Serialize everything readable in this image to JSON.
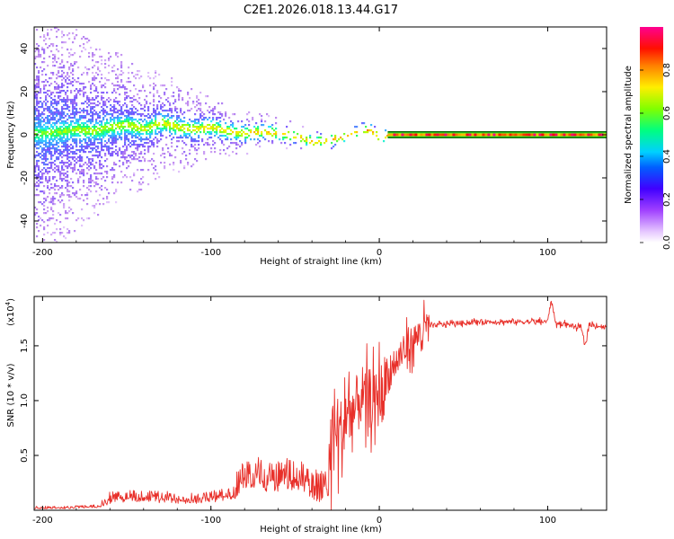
{
  "title": "C2E1.2026.018.13.44.G17",
  "colors": {
    "snr_line": "#e8302a",
    "spectrogram_line": "#e03030",
    "spectrogram_band": "#0a6a0a",
    "colormap": [
      "#ffffff",
      "#d8a8ff",
      "#8a2be2",
      "#3300ff",
      "#0080ff",
      "#00e5ff",
      "#00ff66",
      "#aaff00",
      "#ffee00",
      "#ff8800",
      "#ff0000",
      "#ff0088"
    ]
  },
  "chart_data": [
    {
      "type": "heatmap",
      "name": "spectrogram",
      "xlabel": "Height of straight line (km)",
      "ylabel": "Frequency (Hz)",
      "xlim": [
        -205,
        135
      ],
      "ylim": [
        -50,
        50
      ],
      "xticks": [
        -200,
        -100,
        0,
        100
      ],
      "xtick_labels": [
        "-200",
        "-100",
        "0",
        "100"
      ],
      "yticks": [
        -40,
        -20,
        0,
        20,
        40
      ],
      "ytick_labels": [
        "-40",
        "-20",
        "0",
        "20",
        "40"
      ],
      "colorbar": {
        "label": "Normalized spectral amplitude",
        "range": [
          0,
          1
        ],
        "ticks": [
          0.0,
          0.2,
          0.4,
          0.6,
          0.8
        ],
        "tick_labels": [
          "0.0",
          "0.2",
          "0.4",
          "0.6",
          "0.8"
        ]
      },
      "center_frequency_track": {
        "x": [
          -200,
          -190,
          -180,
          -170,
          -160,
          -150,
          -140,
          -130,
          -120,
          -110,
          -100,
          -90,
          -80,
          -70,
          -60,
          -50,
          -40,
          -30,
          -20,
          -15,
          -10,
          -5,
          0,
          5,
          10,
          50,
          100,
          130
        ],
        "y": [
          1,
          2,
          3,
          2,
          4,
          5,
          3,
          6,
          4,
          3,
          4,
          2,
          1,
          2,
          1,
          0,
          -3,
          -2,
          0,
          1,
          3,
          2,
          -1,
          0,
          0,
          0,
          0,
          0
        ]
      },
      "stable_tone": {
        "x_start": 5,
        "x_end": 130,
        "frequency": 0
      }
    },
    {
      "type": "line",
      "name": "snr",
      "xlabel": "Height of straight line (km)",
      "ylabel": "SNR (10 * v/v)",
      "yscale_label": "(x10",
      "yscale_exp": "4",
      "yscale_close": ")",
      "xlim": [
        -205,
        135
      ],
      "ylim": [
        0,
        1.95
      ],
      "xticks": [
        -200,
        -100,
        0,
        100
      ],
      "xtick_labels": [
        "-200",
        "-100",
        "0",
        "100"
      ],
      "yticks": [
        0.5,
        1.0,
        1.5
      ],
      "ytick_labels": [
        "0.5",
        "1.0",
        "1.5"
      ],
      "series": [
        {
          "name": "SNR",
          "x": [
            -205,
            -180,
            -165,
            -160,
            -150,
            -140,
            -130,
            -120,
            -110,
            -100,
            -90,
            -85,
            -80,
            -75,
            -70,
            -65,
            -60,
            -55,
            -50,
            -45,
            -40,
            -35,
            -30,
            -28,
            -25,
            -22,
            -20,
            -18,
            -15,
            -12,
            -10,
            -8,
            -5,
            -3,
            0,
            5,
            10,
            15,
            20,
            25,
            30,
            40,
            50,
            60,
            70,
            80,
            90,
            100,
            102,
            105,
            110,
            115,
            120,
            122,
            125,
            130,
            135
          ],
          "y": [
            0.02,
            0.03,
            0.05,
            0.12,
            0.15,
            0.16,
            0.13,
            0.12,
            0.12,
            0.14,
            0.18,
            0.22,
            0.4,
            0.42,
            0.35,
            0.32,
            0.3,
            0.35,
            0.35,
            0.3,
            0.22,
            0.12,
            0.15,
            0.8,
            0.75,
            0.65,
            0.9,
            0.85,
            0.9,
            1.0,
            1.05,
            0.95,
            1.05,
            0.95,
            1.05,
            1.2,
            1.35,
            1.45,
            1.55,
            1.62,
            1.68,
            1.7,
            1.71,
            1.72,
            1.72,
            1.72,
            1.72,
            1.72,
            1.92,
            1.7,
            1.7,
            1.68,
            1.66,
            1.5,
            1.7,
            1.68,
            1.67
          ]
        }
      ]
    }
  ]
}
